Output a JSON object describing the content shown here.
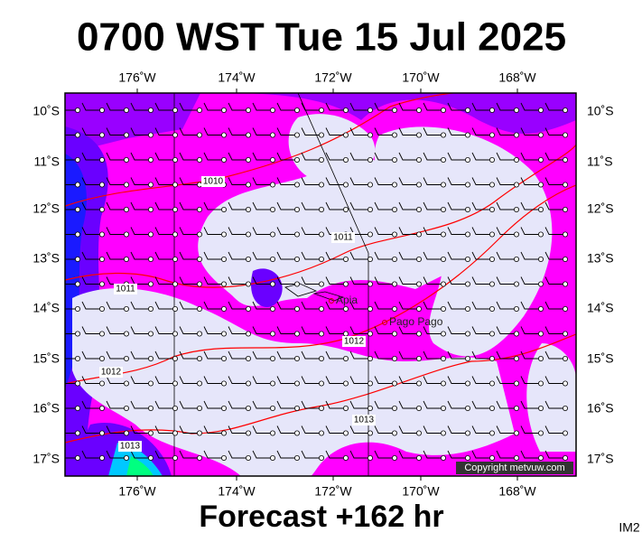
{
  "header": {
    "title": "0700 WST Tue 15 Jul 2025"
  },
  "map": {
    "lon_labels": [
      "176˚W",
      "174˚W",
      "172˚W",
      "170˚W",
      "168˚W"
    ],
    "lat_labels": [
      "10˚S",
      "11˚S",
      "12˚S",
      "13˚S",
      "14˚S",
      "15˚S",
      "16˚S",
      "17˚S"
    ],
    "isobar_labels": [
      "1010",
      "1011",
      "1011",
      "1012",
      "1012",
      "1013",
      "1013"
    ],
    "places": [
      "Apia",
      "Pago Pago"
    ],
    "copyright": "Copyright metvuw.com"
  },
  "footer": {
    "forecast": "Forecast +162 hr",
    "image_id": "IM2"
  }
}
